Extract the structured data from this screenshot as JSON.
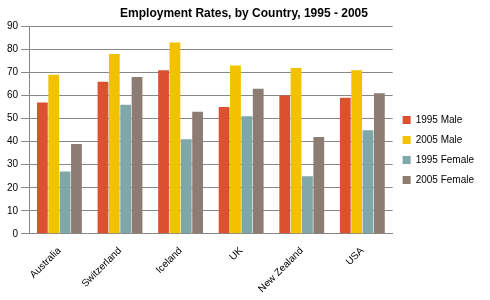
{
  "chart_data": {
    "type": "bar",
    "title": "Employment Rates, by Country, 1995 - 2005",
    "categories": [
      "Australia",
      "Switzerland",
      "Iceland",
      "UK",
      "New Zealand",
      "USA"
    ],
    "series": [
      {
        "name": "1995 Male",
        "color": "#dc5230",
        "values": [
          57,
          66,
          71,
          55,
          60,
          59
        ]
      },
      {
        "name": "2005 Male",
        "color": "#f2c200",
        "values": [
          69,
          78,
          83,
          73,
          72,
          71
        ]
      },
      {
        "name": "1995 Female",
        "color": "#7fa7a8",
        "values": [
          27,
          56,
          41,
          51,
          25,
          45
        ]
      },
      {
        "name": "2005 Female",
        "color": "#8d7c71",
        "values": [
          39,
          68,
          53,
          63,
          42,
          61
        ]
      }
    ],
    "ylim": [
      0,
      90
    ],
    "yticks": [
      0,
      10,
      20,
      30,
      40,
      50,
      60,
      70,
      80,
      90
    ],
    "grid": true,
    "legend": "right"
  }
}
